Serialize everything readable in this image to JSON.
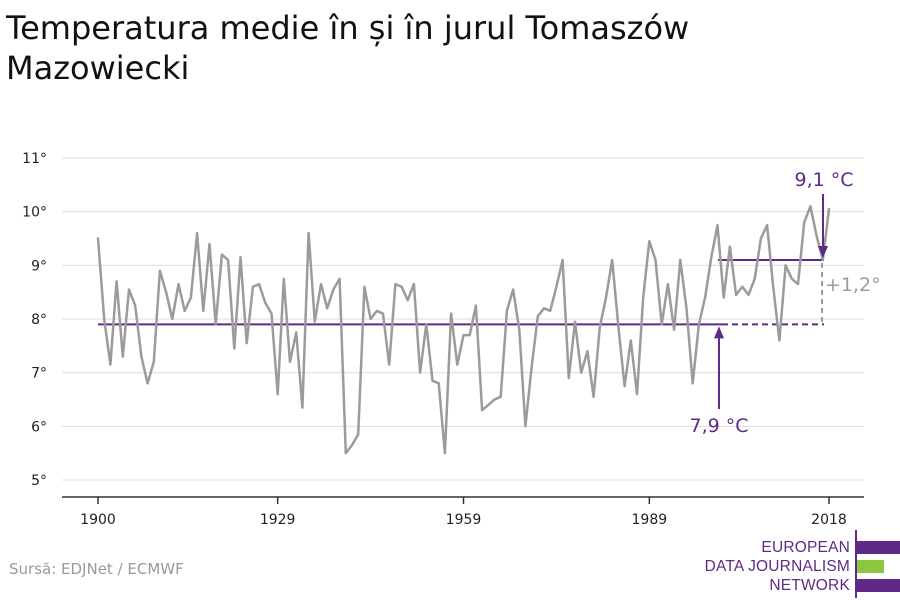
{
  "title": "Temperatura medie în și în jurul Tomaszów Mazowiecki",
  "source": "Sursă: EDJNet / ECMWF",
  "logo": {
    "lines": [
      "EUROPEAN",
      "DATA JOURNALISM",
      "NETWORK"
    ],
    "colors": {
      "purple": "#5f2a86",
      "green": "#8dc63f"
    }
  },
  "colors": {
    "series": "#9b9b9b",
    "accent": "#5f2a86",
    "grid": "#dddddd",
    "difference": "#9b9b9b"
  },
  "chart_data": {
    "type": "line",
    "title": "Temperatura medie în și în jurul Tomaszów Mazowiecki",
    "xlabel": "",
    "ylabel": "",
    "xlim": [
      1900,
      2018
    ],
    "ylim": [
      5,
      11
    ],
    "x_ticks": [
      1900,
      1929,
      1959,
      1989,
      2018
    ],
    "x_tick_labels": [
      "1900",
      "1929",
      "1959",
      "1989",
      "2018"
    ],
    "y_ticks": [
      5,
      6,
      7,
      8,
      9,
      10,
      11
    ],
    "y_tick_labels": [
      "5°",
      "6°",
      "7°",
      "8°",
      "9°",
      "10°",
      "11°"
    ],
    "grid": true,
    "series": [
      {
        "x": [
          1900,
          1901,
          1902,
          1903,
          1904,
          1905,
          1906,
          1907,
          1908,
          1909,
          1910,
          1911,
          1912,
          1913,
          1914,
          1915,
          1916,
          1917,
          1918,
          1919,
          1920,
          1921,
          1922,
          1923,
          1924,
          1925,
          1926,
          1927,
          1928,
          1929,
          1930,
          1931,
          1932,
          1933,
          1934,
          1935,
          1936,
          1937,
          1938,
          1939,
          1940,
          1941,
          1942,
          1943,
          1944,
          1945,
          1946,
          1947,
          1948,
          1949,
          1950,
          1951,
          1952,
          1953,
          1954,
          1955,
          1956,
          1957,
          1958,
          1959,
          1960,
          1961,
          1962,
          1963,
          1964,
          1965,
          1966,
          1967,
          1968,
          1969,
          1970,
          1971,
          1972,
          1973,
          1974,
          1975,
          1976,
          1977,
          1978,
          1979,
          1980,
          1981,
          1982,
          1983,
          1984,
          1985,
          1986,
          1987,
          1988,
          1989,
          1990,
          1991,
          1992,
          1993,
          1994,
          1995,
          1996,
          1997,
          1998,
          1999,
          2000,
          2001,
          2002,
          2003,
          2004,
          2005,
          2006,
          2007,
          2008,
          2009,
          2010,
          2011,
          2012,
          2013,
          2014,
          2015,
          2016,
          2017,
          2018
        ],
        "values": [
          9.5,
          8.0,
          7.15,
          8.7,
          7.3,
          8.55,
          8.25,
          7.3,
          6.8,
          7.2,
          8.9,
          8.5,
          8.0,
          8.65,
          8.15,
          8.4,
          9.6,
          8.15,
          9.4,
          7.9,
          9.2,
          9.1,
          7.45,
          9.15,
          7.55,
          8.6,
          8.65,
          8.3,
          8.1,
          6.6,
          8.75,
          7.2,
          7.75,
          6.35,
          9.6,
          7.95,
          8.65,
          8.2,
          8.55,
          8.75,
          5.5,
          5.65,
          5.85,
          8.6,
          8.0,
          8.15,
          8.1,
          7.15,
          8.65,
          8.6,
          8.35,
          8.65,
          7.0,
          7.9,
          6.85,
          6.8,
          5.5,
          8.1,
          7.15,
          7.7,
          7.7,
          8.25,
          6.3,
          6.4,
          6.5,
          6.55,
          8.15,
          8.55,
          7.8,
          6.0,
          7.1,
          8.05,
          8.2,
          8.15,
          8.6,
          9.1,
          6.9,
          7.95,
          7.0,
          7.4,
          6.55,
          7.85,
          8.4,
          9.1,
          7.85,
          6.75,
          7.6,
          6.6,
          8.4,
          9.45,
          9.1,
          7.9,
          8.65,
          7.8,
          9.1,
          8.2,
          6.8,
          7.9,
          8.4,
          9.15,
          9.75,
          8.4,
          9.35,
          8.45,
          8.6,
          8.45,
          8.75,
          9.5,
          9.75,
          8.6,
          7.6,
          9.0,
          8.75,
          8.65,
          9.8,
          10.1,
          9.55,
          9.1,
          10.05
        ]
      }
    ],
    "baseline": {
      "value": 7.9,
      "label": "7,9 °C"
    },
    "recent": {
      "value": 9.1,
      "label": "9,1 °C"
    },
    "difference_label": "+1,2°"
  }
}
